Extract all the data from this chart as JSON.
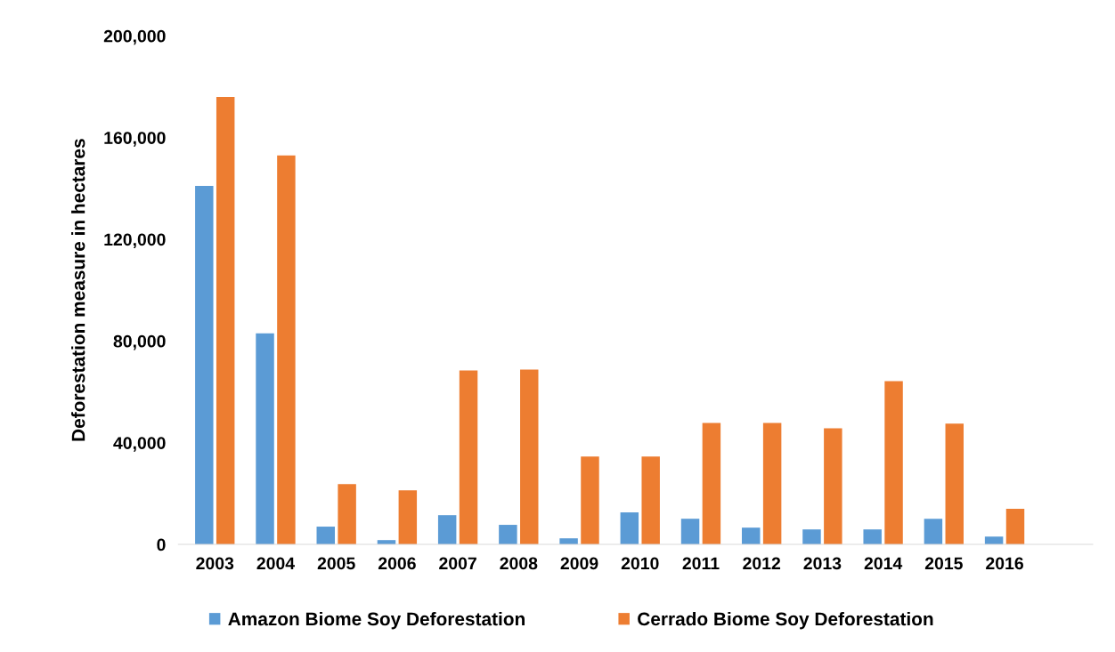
{
  "chart_data": {
    "type": "bar",
    "ylabel": "Deforestation measure in hectares",
    "categories": [
      "2003",
      "2004",
      "2005",
      "2006",
      "2007",
      "2008",
      "2009",
      "2010",
      "2011",
      "2012",
      "2013",
      "2014",
      "2015",
      "2016"
    ],
    "series": [
      {
        "name": "Amazon Biome Soy Deforestation",
        "color": "#5b9bd5",
        "values": [
          141000,
          83000,
          7000,
          1700,
          11500,
          7700,
          2400,
          12600,
          10100,
          6600,
          5900,
          5900,
          10100,
          3100
        ]
      },
      {
        "name": "Cerrado Biome Soy Deforestation",
        "color": "#ed7d31",
        "values": [
          176000,
          153000,
          23700,
          21300,
          68400,
          68800,
          34600,
          34600,
          47800,
          47800,
          45700,
          64200,
          47500,
          14000
        ]
      }
    ],
    "ylim": [
      0,
      200000
    ],
    "yticks": [
      {
        "value": 0,
        "label": "0"
      },
      {
        "value": 40000,
        "label": "40,000"
      },
      {
        "value": 80000,
        "label": "80,000"
      },
      {
        "value": 120000,
        "label": "120,000"
      },
      {
        "value": 160000,
        "label": "160,000"
      },
      {
        "value": 200000,
        "label": "200,000"
      }
    ],
    "grid": false,
    "legend": "bottom"
  }
}
